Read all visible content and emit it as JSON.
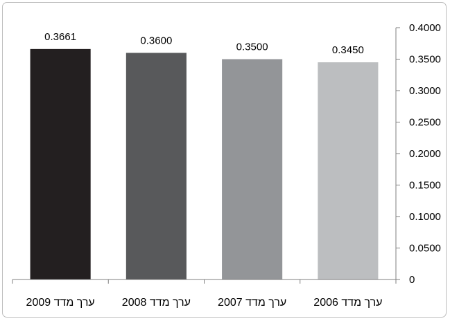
{
  "chart_data": {
    "type": "bar",
    "categories": [
      "ערך מדד 2009",
      "ערך מדד 2008",
      "ערך מדד 2007",
      "ערך מדד 2006"
    ],
    "values": [
      0.3661,
      0.36,
      0.35,
      0.345
    ],
    "value_labels": [
      "0.3661",
      "0.3600",
      "0.3500",
      "0.3450"
    ],
    "bar_colors": [
      "#231f20",
      "#58595b",
      "#939598",
      "#bcbec0"
    ],
    "ylim": [
      0,
      0.4
    ],
    "y_ticks": [
      0,
      0.05,
      0.1,
      0.15,
      0.2,
      0.25,
      0.3,
      0.35,
      0.4
    ],
    "y_tick_labels": [
      "0",
      "0.0500",
      "0.1000",
      "0.1500",
      "0.2000",
      "0.2500",
      "0.3000",
      "0.3500",
      "0.4000"
    ],
    "y_axis_side": "right",
    "grid": false,
    "legend": "none",
    "title": "",
    "xlabel": "",
    "ylabel": ""
  }
}
